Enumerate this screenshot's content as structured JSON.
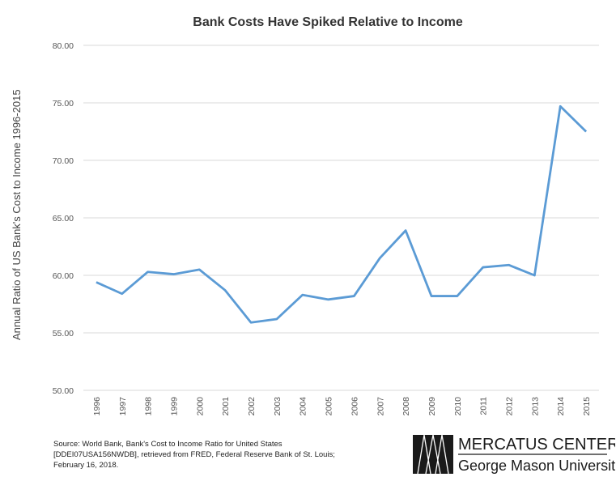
{
  "chart_data": {
    "type": "line",
    "title": "Bank Costs Have Spiked Relative to Income",
    "ylabel": "Annual Ratio of US Bank's Cost to Income 1996-2015",
    "xlabel": "",
    "ylim": [
      50,
      80
    ],
    "yticks": [
      "50.00",
      "55.00",
      "60.00",
      "65.00",
      "70.00",
      "75.00",
      "80.00"
    ],
    "grid": true,
    "categories": [
      "1996",
      "1997",
      "1998",
      "1999",
      "2000",
      "2001",
      "2002",
      "2003",
      "2004",
      "2005",
      "2006",
      "2007",
      "2008",
      "2009",
      "2010",
      "2011",
      "2012",
      "2013",
      "2014",
      "2015"
    ],
    "values": [
      59.4,
      58.4,
      60.3,
      60.1,
      60.5,
      58.7,
      55.9,
      56.2,
      58.3,
      57.9,
      58.2,
      61.5,
      63.9,
      58.2,
      58.2,
      60.7,
      60.9,
      60.0,
      74.7,
      72.5
    ],
    "line_color": "#5b9bd5"
  },
  "source": {
    "lines": [
      "Source: World Bank, Bank's Cost to Income Ratio for United States",
      "[DDEI07USA156NWDB], retrieved from FRED, Federal Reserve Bank of St. Louis;",
      "February 16, 2018."
    ]
  },
  "logo": {
    "name": "MERCATUS CENTER",
    "sub": "George Mason University"
  }
}
